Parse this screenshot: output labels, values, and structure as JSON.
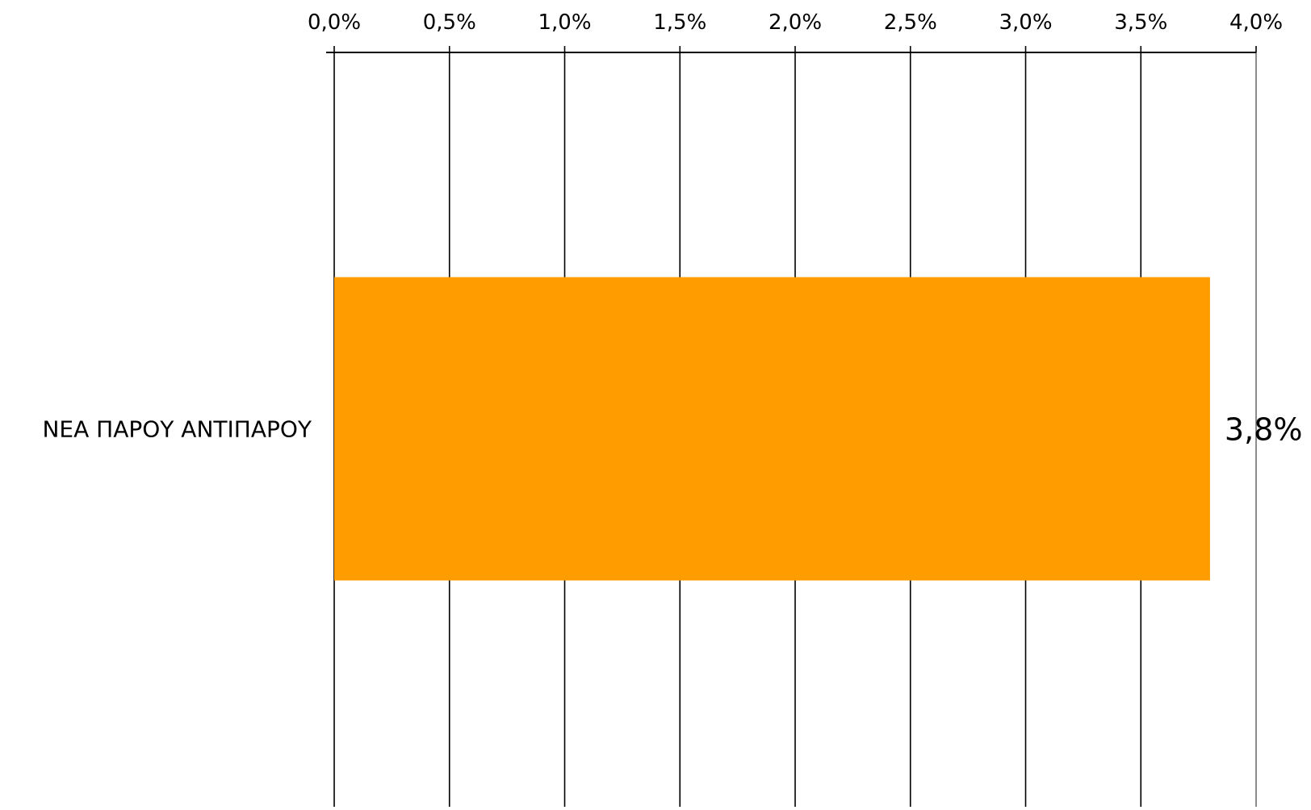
{
  "chart_data": {
    "type": "bar",
    "orientation": "horizontal",
    "categories": [
      "ΝΕΑ ΠΑΡΟΥ ΑΝΤΙΠΑΡΟΥ"
    ],
    "values": [
      3.8
    ],
    "data_labels": [
      "3,8%"
    ],
    "title": "",
    "xlabel": "",
    "ylabel": "",
    "xlim": [
      0,
      4.0
    ],
    "x_ticks": [
      0,
      0.5,
      1.0,
      1.5,
      2.0,
      2.5,
      3.0,
      3.5,
      4.0
    ],
    "x_tick_labels": [
      "0,0%",
      "0,5%",
      "1,0%",
      "1,5%",
      "2,0%",
      "2,5%",
      "3,0%",
      "3,5%",
      "4,0%"
    ],
    "x_axis_position": "top",
    "grid": true,
    "legend": "none",
    "bar_color": "#FF9C00"
  }
}
